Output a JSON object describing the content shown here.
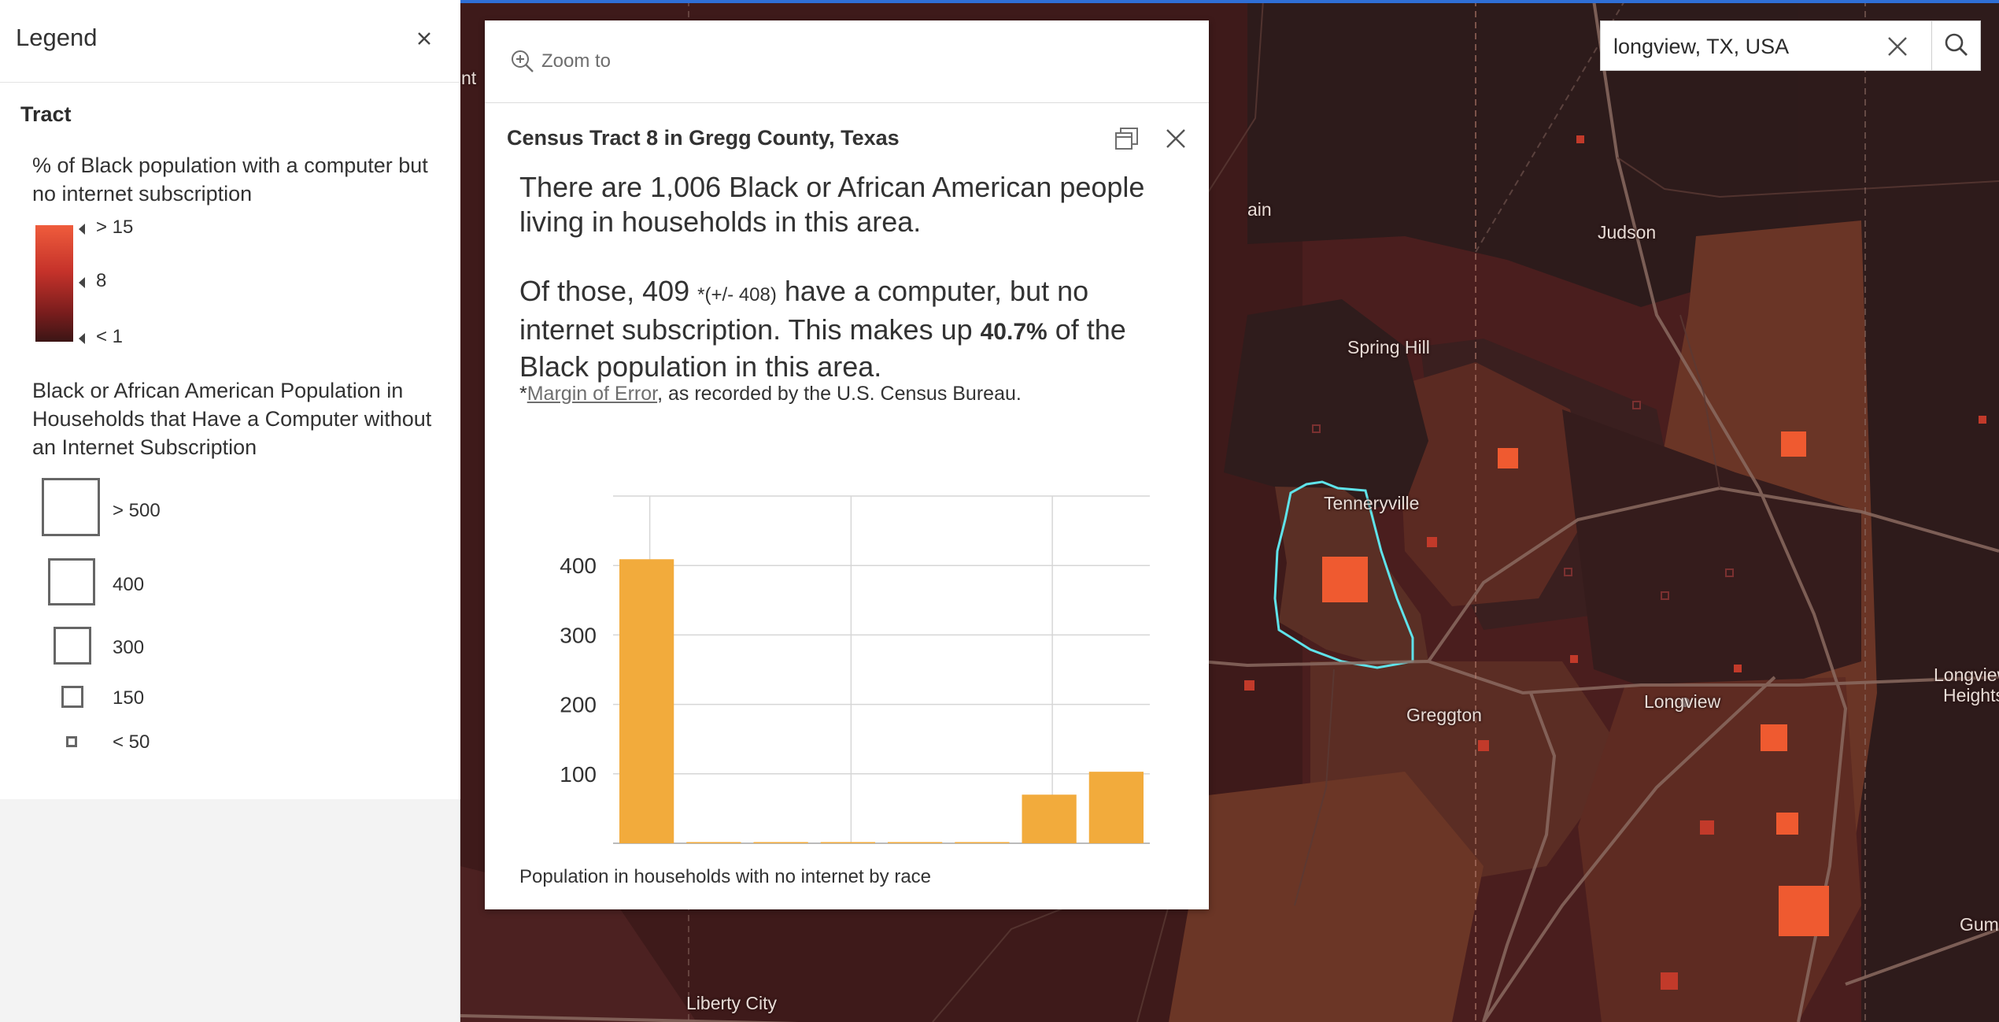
{
  "legend": {
    "title": "Legend",
    "layer_title": "Tract",
    "color_ramp": {
      "title": "% of Black population with a computer but no internet subscription",
      "stops": [
        "> 15",
        "8",
        "< 1"
      ],
      "colors": [
        "#ef5c3c",
        "#c5322a",
        "#3b1515"
      ]
    },
    "size": {
      "title": "Black or African American Population in Households that Have a Computer without an Internet Subscription",
      "items": [
        {
          "label": "> 500"
        },
        {
          "label": "400"
        },
        {
          "label": "300"
        },
        {
          "label": "150"
        },
        {
          "label": "< 50"
        }
      ]
    }
  },
  "search": {
    "value": "longview, TX, USA"
  },
  "popup": {
    "zoom_label": "Zoom to",
    "title": "Census Tract 8 in Gregg County, Texas",
    "para1": "There are 1,006 Black or African American people living in households in this area.",
    "para2_a": "Of those, 409 ",
    "para2_moe": "*(+/- 408)",
    "para2_b": " have a computer, but no internet subscription. This makes up ",
    "para2_pct": "40.7%",
    "para2_c": " of the Black population in this area.",
    "footnote_star": "*",
    "footnote_link": "Margin of Error",
    "footnote_rest": ", as recorded by the U.S. Census Bureau.",
    "chart_caption": "Population in households with no internet by race"
  },
  "chart_data": {
    "type": "bar",
    "title": "Population in households with no internet by race",
    "categories": [
      "",
      "",
      "",
      "",
      "",
      "",
      "",
      ""
    ],
    "values": [
      409,
      0,
      0,
      0,
      0,
      0,
      70,
      103
    ],
    "y_ticks": [
      "100",
      "200",
      "300",
      "400"
    ],
    "ylim": [
      0,
      500
    ],
    "bar_color": "#f2ab3c",
    "grid": true
  },
  "map": {
    "labels": [
      {
        "text": "nt"
      },
      {
        "text": "ain"
      },
      {
        "text": "Judson"
      },
      {
        "text": "Spring Hill"
      },
      {
        "text": "Tenneryville"
      },
      {
        "text": "Greggton"
      },
      {
        "text": "Longview"
      },
      {
        "text": "Longview"
      },
      {
        "text": "Heights"
      },
      {
        "text": "Gum Spr"
      },
      {
        "text": "Liberty City"
      }
    ],
    "highlight_color": "#5fe3ea",
    "symbol_color": "#ef5a30"
  }
}
